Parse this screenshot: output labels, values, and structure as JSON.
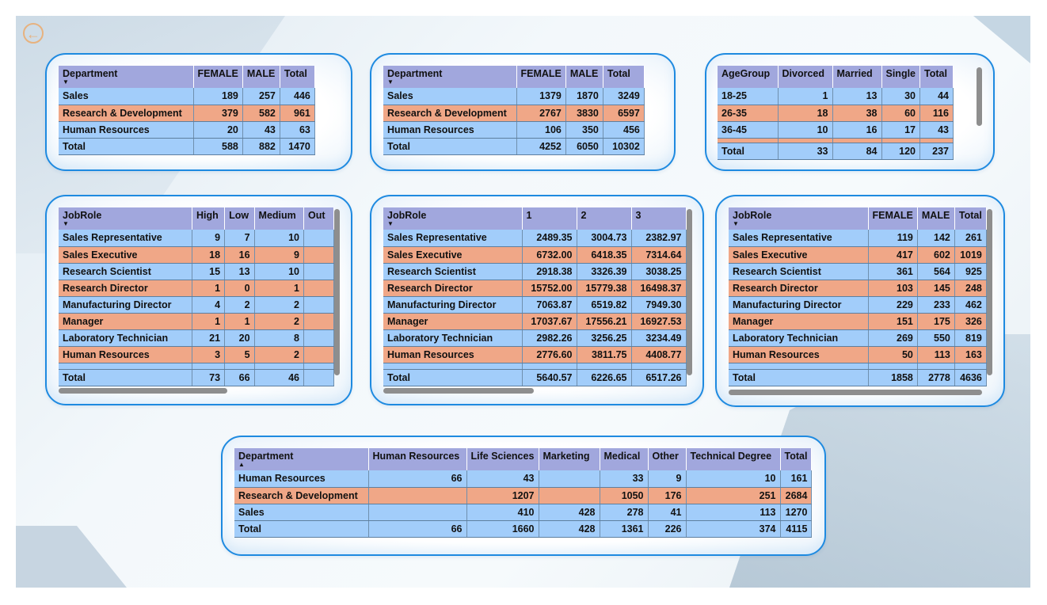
{
  "back_button": {
    "icon": "back-arrow-icon",
    "glyph": "←"
  },
  "colors": {
    "header": "#a1a7dd",
    "row_blue": "#a2cdfa",
    "row_orange": "#f0a787",
    "panel_border": "#1e8ae0"
  },
  "table1": {
    "headers": [
      "Department",
      "FEMALE",
      "MALE",
      "Total"
    ],
    "rows": [
      [
        "Sales",
        "189",
        "257",
        "446"
      ],
      [
        "Research & Development",
        "379",
        "582",
        "961"
      ],
      [
        "Human Resources",
        "20",
        "43",
        "63"
      ],
      [
        "Total",
        "588",
        "882",
        "1470"
      ]
    ]
  },
  "table2": {
    "headers": [
      "Department",
      "FEMALE",
      "MALE",
      "Total"
    ],
    "rows": [
      [
        "Sales",
        "1379",
        "1870",
        "3249"
      ],
      [
        "Research & Development",
        "2767",
        "3830",
        "6597"
      ],
      [
        "Human Resources",
        "106",
        "350",
        "456"
      ],
      [
        "Total",
        "4252",
        "6050",
        "10302"
      ]
    ]
  },
  "table3": {
    "headers": [
      "AgeGroup",
      "Divorced",
      "Married",
      "Single",
      "Total"
    ],
    "rows": [
      [
        "18-25",
        "1",
        "13",
        "30",
        "44"
      ],
      [
        "26-35",
        "18",
        "38",
        "60",
        "116"
      ],
      [
        "36-45",
        "10",
        "16",
        "17",
        "43"
      ],
      [
        "Total",
        "33",
        "84",
        "120",
        "237"
      ]
    ]
  },
  "table4": {
    "headers": [
      "JobRole",
      "High",
      "Low",
      "Medium",
      "Out"
    ],
    "rows": [
      [
        "Sales Representative",
        "9",
        "7",
        "10",
        ""
      ],
      [
        "Sales Executive",
        "18",
        "16",
        "9",
        ""
      ],
      [
        "Research Scientist",
        "15",
        "13",
        "10",
        ""
      ],
      [
        "Research Director",
        "1",
        "0",
        "1",
        ""
      ],
      [
        "Manufacturing Director",
        "4",
        "2",
        "2",
        ""
      ],
      [
        "Manager",
        "1",
        "1",
        "2",
        ""
      ],
      [
        "Laboratory Technician",
        "21",
        "20",
        "8",
        ""
      ],
      [
        "Human Resources",
        "3",
        "5",
        "2",
        ""
      ],
      [
        "Total",
        "73",
        "66",
        "46",
        ""
      ]
    ]
  },
  "table5": {
    "headers": [
      "JobRole",
      "1",
      "2",
      "3"
    ],
    "rows": [
      [
        "Sales Representative",
        "2489.35",
        "3004.73",
        "2382.97"
      ],
      [
        "Sales Executive",
        "6732.00",
        "6418.35",
        "7314.64"
      ],
      [
        "Research Scientist",
        "2918.38",
        "3326.39",
        "3038.25"
      ],
      [
        "Research Director",
        "15752.00",
        "15779.38",
        "16498.37"
      ],
      [
        "Manufacturing Director",
        "7063.87",
        "6519.82",
        "7949.30"
      ],
      [
        "Manager",
        "17037.67",
        "17556.21",
        "16927.53"
      ],
      [
        "Laboratory Technician",
        "2982.26",
        "3256.25",
        "3234.49"
      ],
      [
        "Human Resources",
        "2776.60",
        "3811.75",
        "4408.77"
      ],
      [
        "Total",
        "5640.57",
        "6226.65",
        "6517.26"
      ]
    ]
  },
  "table6": {
    "headers": [
      "JobRole",
      "FEMALE",
      "MALE",
      "Total"
    ],
    "rows": [
      [
        "Sales Representative",
        "119",
        "142",
        "261"
      ],
      [
        "Sales Executive",
        "417",
        "602",
        "1019"
      ],
      [
        "Research Scientist",
        "361",
        "564",
        "925"
      ],
      [
        "Research Director",
        "103",
        "145",
        "248"
      ],
      [
        "Manufacturing Director",
        "229",
        "233",
        "462"
      ],
      [
        "Manager",
        "151",
        "175",
        "326"
      ],
      [
        "Laboratory Technician",
        "269",
        "550",
        "819"
      ],
      [
        "Human Resources",
        "50",
        "113",
        "163"
      ],
      [
        "Total",
        "1858",
        "2778",
        "4636"
      ]
    ]
  },
  "table7": {
    "headers": [
      "Department",
      "Human Resources",
      "Life Sciences",
      "Marketing",
      "Medical",
      "Other",
      "Technical Degree",
      "Total"
    ],
    "rows": [
      [
        "Human Resources",
        "66",
        "43",
        "",
        "33",
        "9",
        "10",
        "161"
      ],
      [
        "Research & Development",
        "",
        "1207",
        "",
        "1050",
        "176",
        "251",
        "2684"
      ],
      [
        "Sales",
        "",
        "410",
        "428",
        "278",
        "41",
        "113",
        "1270"
      ],
      [
        "Total",
        "66",
        "1660",
        "428",
        "1361",
        "226",
        "374",
        "4115"
      ]
    ]
  }
}
